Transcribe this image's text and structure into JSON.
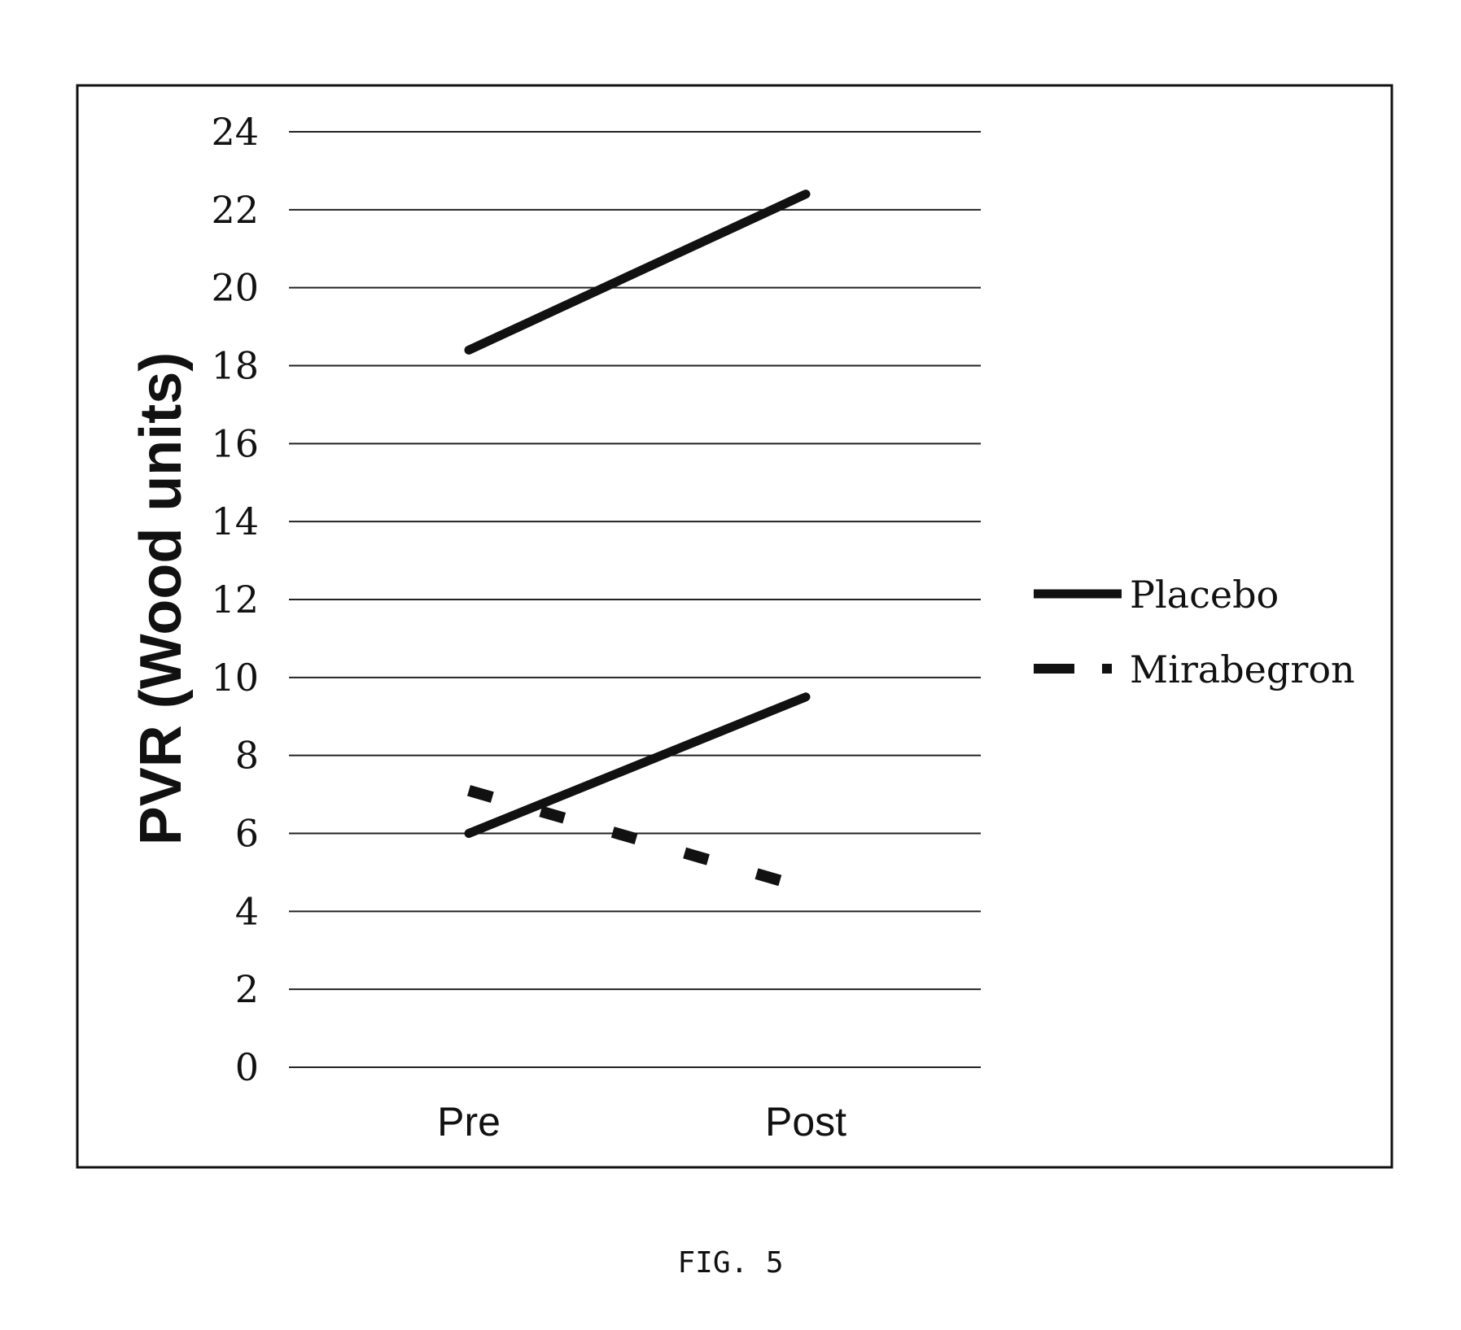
{
  "figure_caption": "FIG. 5",
  "chart_data": {
    "type": "line",
    "categories": [
      "Pre",
      "Post"
    ],
    "ylabel": "PVR (Wood units)",
    "xlabel": "",
    "ylim": [
      0,
      24
    ],
    "yticks": [
      "0",
      "2",
      "4",
      "6",
      "8",
      "10",
      "12",
      "14",
      "16",
      "18",
      "20",
      "22",
      "24"
    ],
    "grid": true,
    "legend_position": "right",
    "legend": [
      "Placebo",
      "Mirabegron"
    ],
    "series": [
      {
        "name": "Placebo",
        "style": "solid",
        "values": [
          18.4,
          22.4
        ]
      },
      {
        "name": "Placebo",
        "style": "solid",
        "values": [
          6.0,
          9.5
        ]
      },
      {
        "name": "Mirabegron",
        "style": "dashed",
        "values": [
          7.1,
          4.6
        ]
      }
    ],
    "colors": {
      "line": "#111111",
      "grid": "#222222",
      "frame": "#111111"
    }
  }
}
